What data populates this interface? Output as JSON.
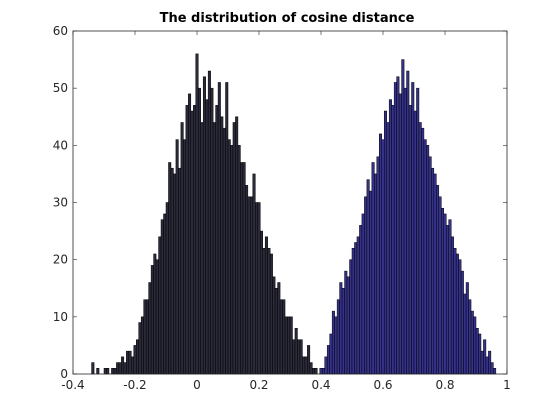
{
  "chart_data": {
    "type": "bar",
    "title": "The distribution of cosine distance",
    "xlabel": "",
    "ylabel": "",
    "xlim": [
      -0.4,
      1
    ],
    "ylim": [
      0,
      60
    ],
    "x_ticks": [
      -0.4,
      -0.2,
      0,
      0.2,
      0.4,
      0.6,
      0.8,
      1
    ],
    "x_tick_labels": [
      "-0.4",
      "-0.2",
      "0",
      "0.2",
      "0.4",
      "0.6",
      "0.8",
      "1"
    ],
    "y_ticks": [
      0,
      10,
      20,
      30,
      40,
      50,
      60
    ],
    "y_tick_labels": [
      "0",
      "10",
      "20",
      "30",
      "40",
      "50",
      "60"
    ],
    "grid": false,
    "legend": "none",
    "series": [
      {
        "color": "#2a2a3a",
        "bin_width": 0.008,
        "x": [
          -0.336,
          -0.328,
          -0.32,
          -0.312,
          -0.304,
          -0.296,
          -0.288,
          -0.28,
          -0.272,
          -0.264,
          -0.256,
          -0.248,
          -0.24,
          -0.232,
          -0.224,
          -0.216,
          -0.208,
          -0.2,
          -0.192,
          -0.184,
          -0.176,
          -0.168,
          -0.16,
          -0.152,
          -0.144,
          -0.136,
          -0.128,
          -0.12,
          -0.112,
          -0.104,
          -0.096,
          -0.088,
          -0.08,
          -0.072,
          -0.064,
          -0.056,
          -0.048,
          -0.04,
          -0.032,
          -0.024,
          -0.016,
          -0.008,
          0.0,
          0.008,
          0.016,
          0.024,
          0.032,
          0.04,
          0.048,
          0.056,
          0.064,
          0.072,
          0.08,
          0.088,
          0.096,
          0.104,
          0.112,
          0.12,
          0.128,
          0.136,
          0.144,
          0.152,
          0.16,
          0.168,
          0.176,
          0.184,
          0.192,
          0.2,
          0.208,
          0.216,
          0.224,
          0.232,
          0.24,
          0.248,
          0.256,
          0.264,
          0.272,
          0.28,
          0.288,
          0.296,
          0.304,
          0.312,
          0.32,
          0.328,
          0.336,
          0.344,
          0.352,
          0.36,
          0.368,
          0.376,
          0.384
        ],
        "values": [
          2,
          0,
          1,
          0,
          0,
          1,
          1,
          0,
          1,
          1,
          2,
          2,
          3,
          2,
          4,
          4,
          3,
          5,
          6,
          9,
          10,
          13,
          13,
          16,
          19,
          21,
          20,
          24,
          27,
          28,
          30,
          37,
          36,
          35,
          41,
          36,
          44,
          41,
          47,
          49,
          46,
          47,
          56,
          50,
          44,
          52,
          48,
          53,
          50,
          44,
          47,
          51,
          45,
          43,
          51,
          41,
          40,
          44,
          45,
          40,
          37,
          37,
          33,
          31,
          31,
          35,
          30,
          30,
          25,
          22,
          24,
          22,
          21,
          17,
          15,
          16,
          13,
          13,
          10,
          10,
          10,
          6,
          8,
          6,
          6,
          3,
          3,
          5,
          2,
          1,
          1
        ]
      },
      {
        "color": "#36328c",
        "bin_width": 0.008,
        "x": [
          0.4,
          0.408,
          0.416,
          0.424,
          0.432,
          0.44,
          0.448,
          0.456,
          0.464,
          0.472,
          0.48,
          0.488,
          0.496,
          0.504,
          0.512,
          0.52,
          0.528,
          0.536,
          0.544,
          0.552,
          0.56,
          0.568,
          0.576,
          0.584,
          0.592,
          0.6,
          0.608,
          0.616,
          0.624,
          0.632,
          0.64,
          0.648,
          0.656,
          0.664,
          0.672,
          0.68,
          0.688,
          0.696,
          0.704,
          0.712,
          0.72,
          0.728,
          0.736,
          0.744,
          0.752,
          0.76,
          0.768,
          0.776,
          0.784,
          0.792,
          0.8,
          0.808,
          0.816,
          0.824,
          0.832,
          0.84,
          0.848,
          0.856,
          0.864,
          0.872,
          0.88,
          0.888,
          0.896,
          0.904,
          0.912,
          0.92,
          0.928,
          0.936,
          0.944,
          0.952,
          0.96
        ],
        "values": [
          1,
          1,
          3,
          5,
          7,
          11,
          10,
          13,
          16,
          15,
          18,
          17,
          20,
          22,
          23,
          24,
          26,
          28,
          31,
          34,
          32,
          37,
          35,
          38,
          42,
          41,
          46,
          44,
          48,
          47,
          51,
          52,
          49,
          55,
          50,
          53,
          47,
          51,
          46,
          50,
          44,
          43,
          41,
          40,
          38,
          36,
          35,
          33,
          31,
          29,
          28,
          26,
          27,
          24,
          22,
          21,
          20,
          18,
          14,
          16,
          13,
          11,
          10,
          8,
          7,
          4,
          6,
          3,
          4,
          2,
          1
        ]
      }
    ]
  }
}
